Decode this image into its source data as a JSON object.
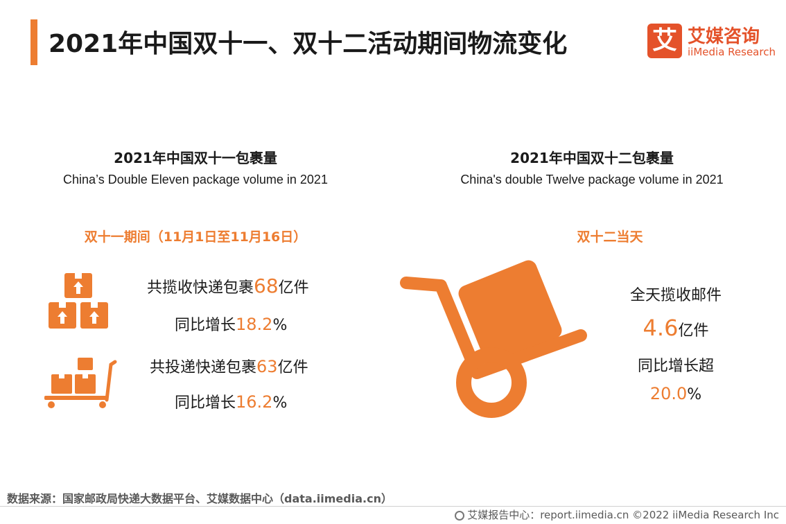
{
  "header": {
    "title": "2021年中国双十一、双十二活动期间物流变化",
    "logo_mark": "艾",
    "logo_cn": "艾媒咨询",
    "logo_en": "iiMedia Research"
  },
  "left": {
    "title": "2021年中国双十一包裹量",
    "subtitle": "China’s Double Eleven package volume in 2021",
    "period": "双十一期间（11月1日至11月16日）",
    "stat1": {
      "prefix": "共揽收快递包裹",
      "value": "68",
      "suffix": "亿件",
      "growth_prefix": "同比增长",
      "growth_value": "18.2",
      "growth_suffix": "%"
    },
    "stat2": {
      "prefix": "共投递快递包裹",
      "value": "63",
      "suffix": "亿件",
      "growth_prefix": "同比增长",
      "growth_value": "16.2",
      "growth_suffix": "%"
    }
  },
  "right": {
    "title": "2021年中国双十二包裹量",
    "subtitle": "China's double Twelve package volume in 2021",
    "period": "双十二当天",
    "label": "全天揽收邮件",
    "value": "4.6",
    "unit": "亿件",
    "growth_label": "同比增长超",
    "growth_value": "20.0",
    "growth_suffix": "%"
  },
  "footer": {
    "source": "数据来源：国家邮政局快递大数据平台、艾媒数据中心（data.iimedia.cn）",
    "credit": "艾媒报告中心：report.iimedia.cn ©2022 iiMedia Research Inc"
  },
  "colors": {
    "accent": "#ED7D31",
    "brand": "#E4522A"
  },
  "icons": [
    "stacked-boxes-icon",
    "cart-with-boxes-icon",
    "hand-truck-icon",
    "report-center-icon"
  ]
}
